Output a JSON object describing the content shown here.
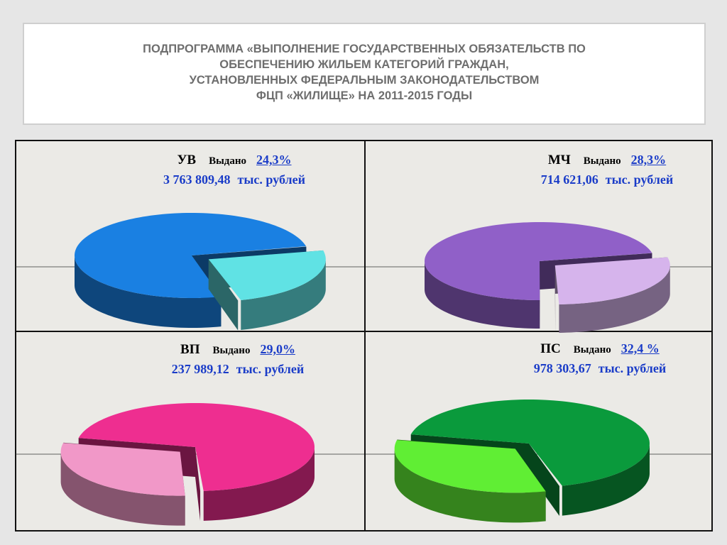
{
  "header": {
    "title": [
      "ПОДПРОГРАММА «ВЫПОЛНЕНИЕ ГОСУДАРСТВЕННЫХ ОБЯЗАТЕЛЬСТВ ПО",
      "ОБЕСПЕЧЕНИЮ ЖИЛЬЕМ КАТЕГОРИЙ ГРАЖДАН,",
      "УСТАНОВЛЕННЫХ ФЕДЕРАЛЬНЫМ ЗАКОНОДАТЕЛЬСТВОМ",
      "ФЦП «ЖИЛИЩЕ» НА 2011-2015 ГОДЫ"
    ]
  },
  "chart_data": [
    {
      "type": "pie",
      "title": "УВ",
      "label": "Выдано",
      "values": [
        24.3
      ],
      "value_labels": [
        "24,3%"
      ],
      "amount": "3 763 809,48",
      "unit": "тыс. рублей",
      "color": "#1a80e2",
      "slice_color": "#60e2e4"
    },
    {
      "type": "pie",
      "title": "МЧ",
      "label": "Выдано",
      "values": [
        28.3
      ],
      "value_labels": [
        "28,3%"
      ],
      "amount": "714 621,06",
      "unit": "тыс. рублей",
      "color": "#9060c8",
      "slice_color": "#d6b4ec"
    },
    {
      "type": "pie",
      "title": "ВП",
      "label": "Выдано",
      "values": [
        29.0
      ],
      "value_labels": [
        "29,0%"
      ],
      "amount": "237 989,12",
      "unit": "тыс. рублей",
      "color": "#ee2e90",
      "slice_color": "#f198c8"
    },
    {
      "type": "pie",
      "title": "ПС",
      "label": "Выдано",
      "values": [
        32.4
      ],
      "value_labels": [
        "32,4 %"
      ],
      "amount": "978 303,67",
      "unit": "тыс. рублей",
      "color": "#0a9a3c",
      "slice_color": "#60ee34"
    }
  ]
}
